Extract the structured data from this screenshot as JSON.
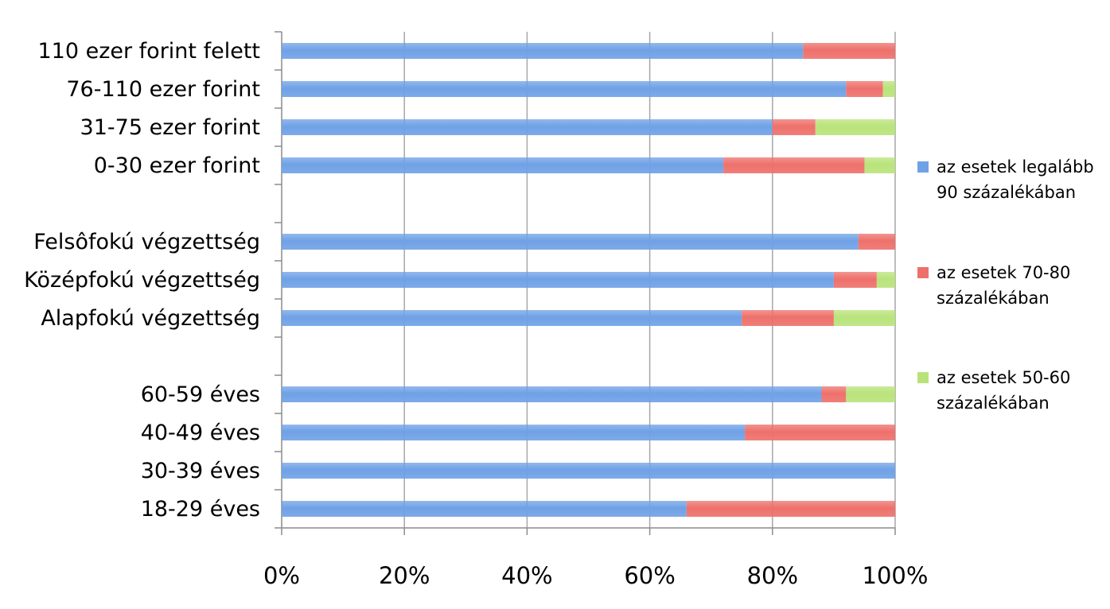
{
  "chart_data": {
    "type": "bar",
    "orientation": "horizontal",
    "stacked": true,
    "percent_stacked": true,
    "title": "",
    "xlabel": "",
    "ylabel": "",
    "xlim": [
      0,
      100
    ],
    "x_ticks": [
      "0%",
      "20%",
      "40%",
      "60%",
      "80%",
      "100%"
    ],
    "grid": true,
    "legend_position": "right",
    "categories": [
      "110 ezer forint felett",
      "76-110 ezer forint",
      "31-75 ezer forint",
      "0-30 ezer forint",
      "",
      "Felsôfokú végzettség",
      "Középfokú végzettség",
      "Alapfokú végzettség",
      "",
      "60-59 éves",
      "40-49 éves",
      "30-39 éves",
      "18-29 éves"
    ],
    "series": [
      {
        "name": "az esetek legalább 90 százalékában",
        "legend_lines": [
          "az esetek legalább",
          "90 százalékában"
        ],
        "color": "#6fa1e6",
        "values": [
          85,
          92,
          80,
          72,
          null,
          94,
          90,
          75,
          null,
          88,
          75.5,
          100,
          66
        ]
      },
      {
        "name": "az esetek 70-80 százalékában",
        "legend_lines": [
          "az esetek 70-80",
          "százalékában"
        ],
        "color": "#ee706b",
        "values": [
          15,
          6,
          7,
          23,
          null,
          6,
          7,
          15,
          null,
          4,
          24.5,
          0,
          34
        ]
      },
      {
        "name": "az esetek 50-60 százalékában",
        "legend_lines": [
          "az esetek 50-60",
          "százalékában"
        ],
        "color": "#b9e37a",
        "values": [
          0,
          2,
          13,
          5,
          null,
          0,
          3,
          10,
          null,
          8,
          0,
          0,
          0
        ]
      }
    ]
  }
}
